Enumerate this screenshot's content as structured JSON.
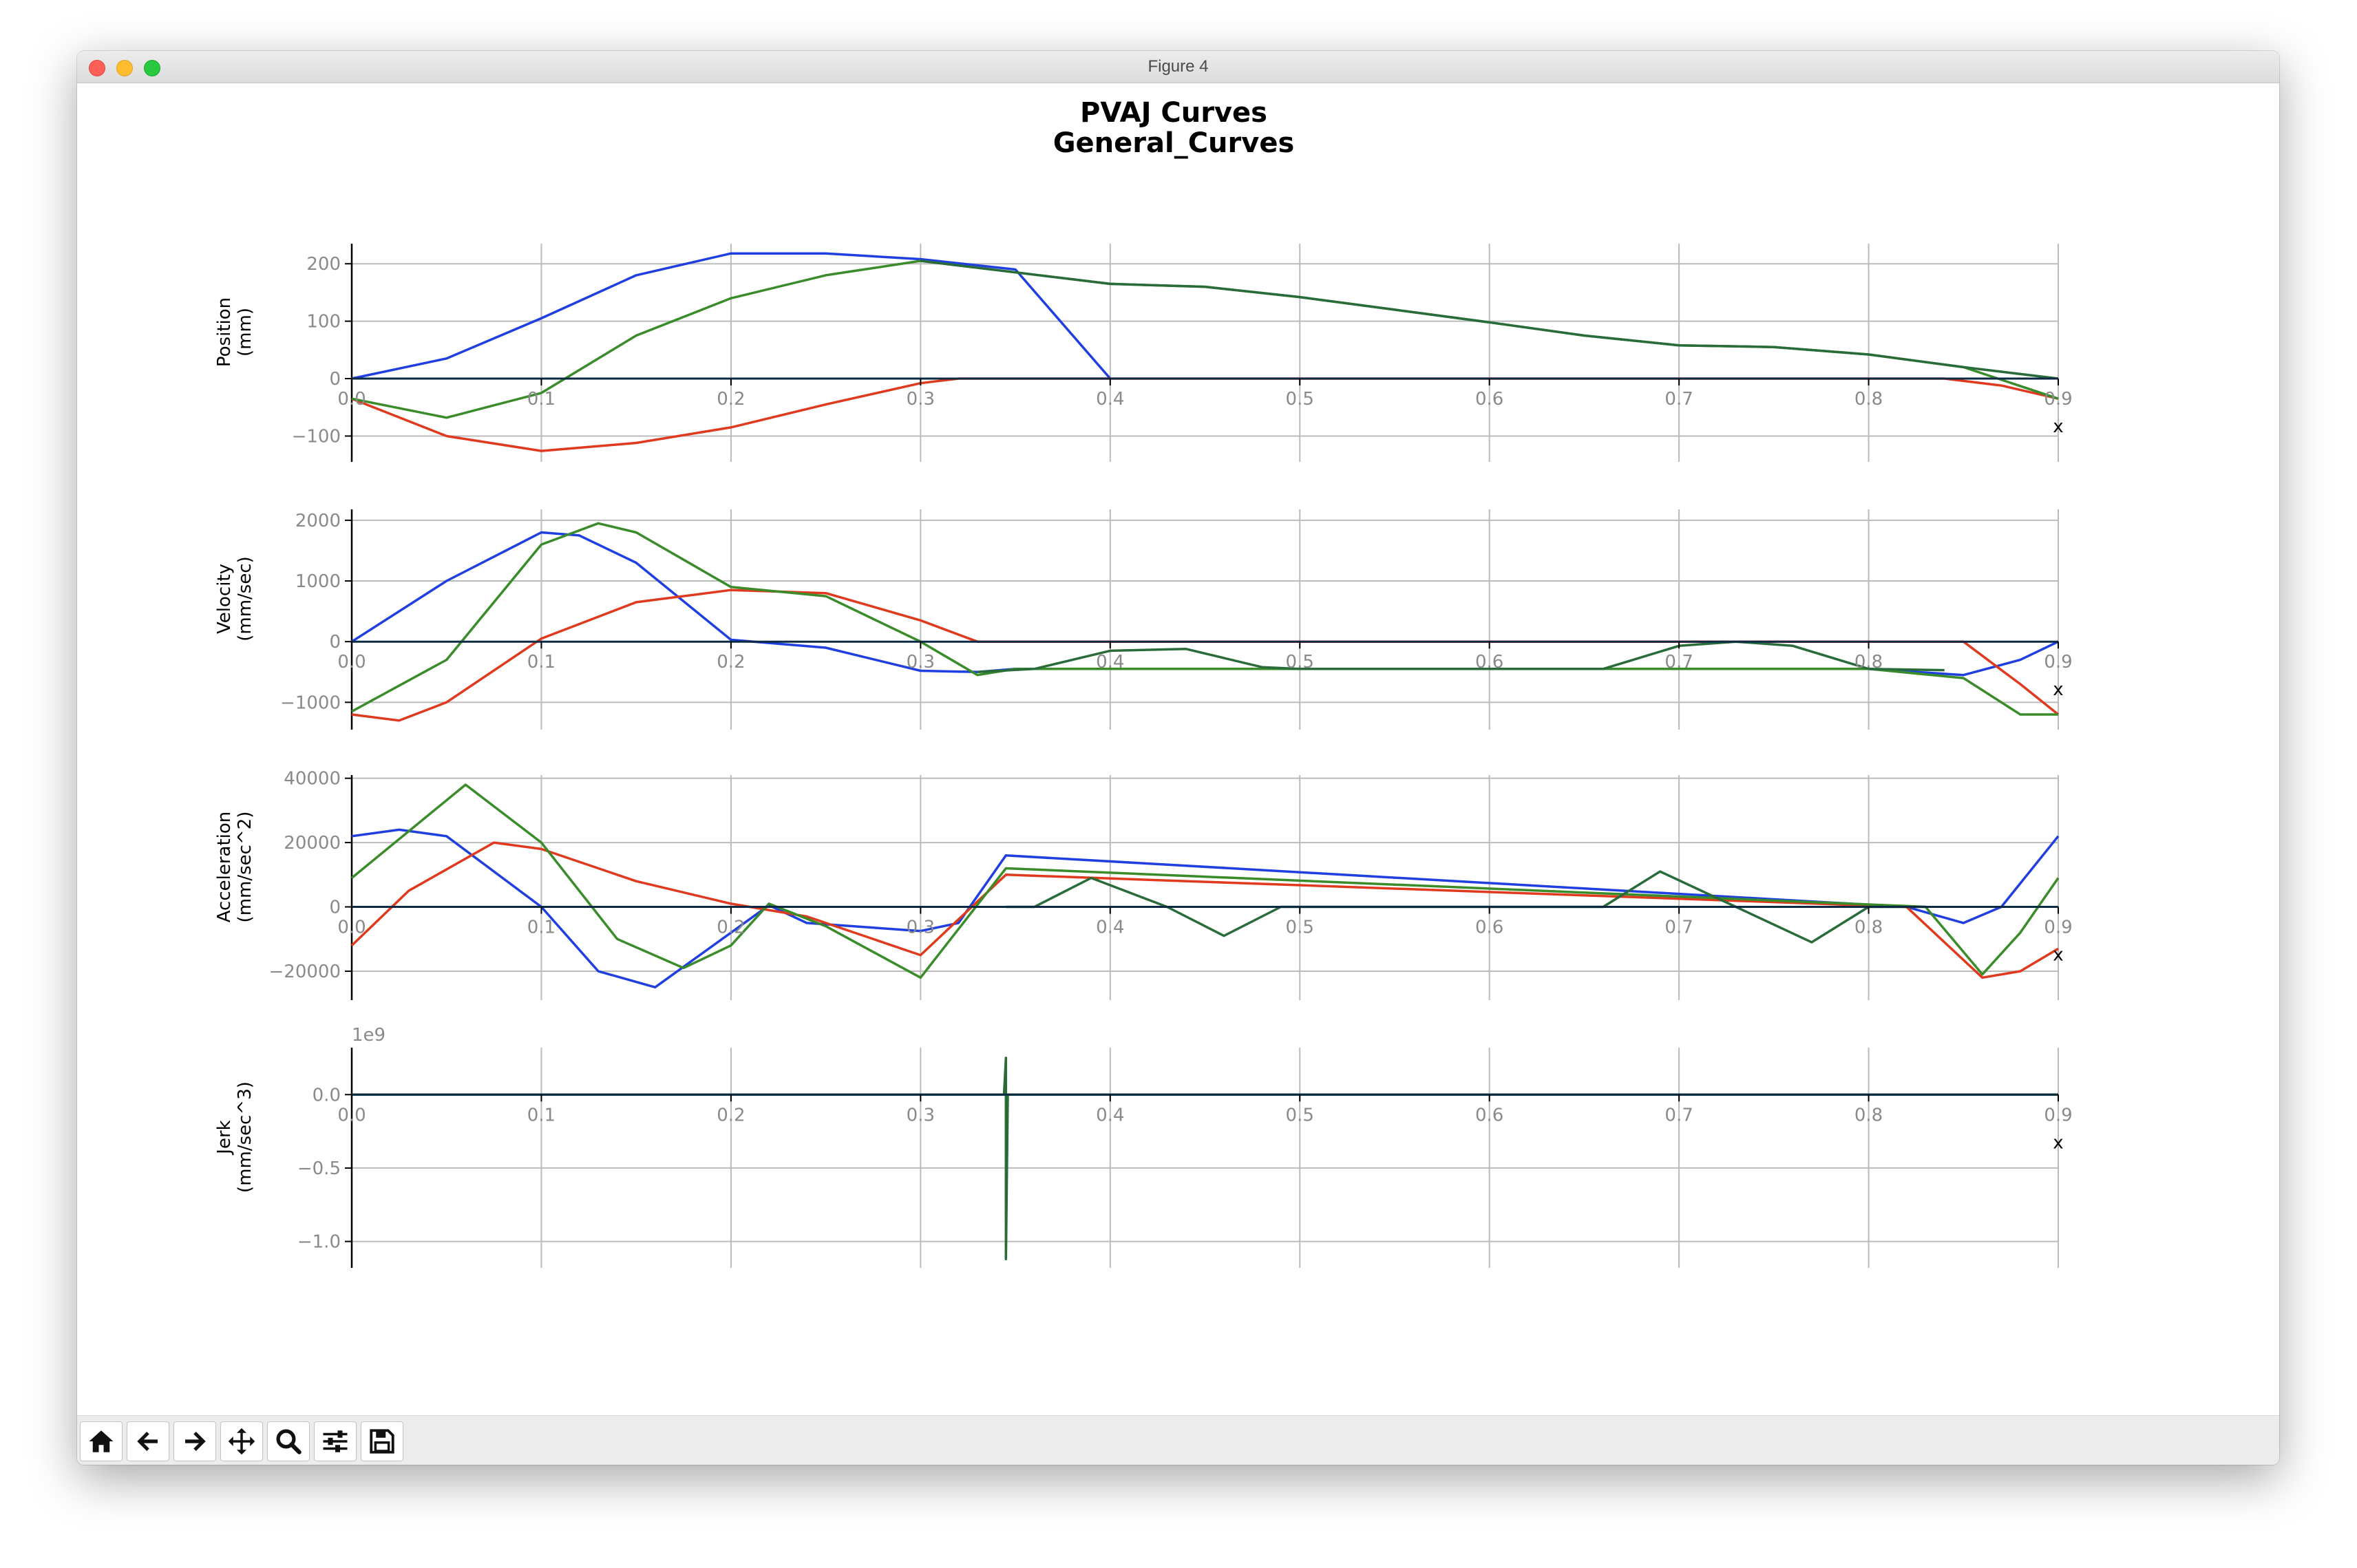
{
  "window": {
    "title": "Figure 4"
  },
  "toolbar": {
    "buttons": [
      {
        "name": "home-button",
        "icon": "home-icon"
      },
      {
        "name": "back-button",
        "icon": "arrow-left-icon"
      },
      {
        "name": "forward-button",
        "icon": "arrow-right-icon"
      },
      {
        "name": "pan-button",
        "icon": "move-icon"
      },
      {
        "name": "zoom-button",
        "icon": "magnifier-icon"
      },
      {
        "name": "configure-subplots-button",
        "icon": "sliders-icon"
      },
      {
        "name": "save-button",
        "icon": "floppy-disk-icon"
      }
    ]
  },
  "colors": {
    "series1": "#1f3fe0",
    "series2": "#e03a1e",
    "series3": "#3a8c2a",
    "series4": "#0d2a45",
    "grid": "#bbbbbb"
  },
  "figure": {
    "title_line1": "PVAJ Curves",
    "title_line2": "General_Curves"
  },
  "chart_data": [
    {
      "type": "line",
      "ylabel": [
        "Position",
        "(mm)"
      ],
      "xlabel": "x",
      "xlim": [
        0,
        0.9
      ],
      "ylim": [
        -145,
        235
      ],
      "xticks": [
        "0.0",
        "0.1",
        "0.2",
        "0.3",
        "0.4",
        "0.5",
        "0.6",
        "0.7",
        "0.8",
        "0.9"
      ],
      "yticks": [
        200,
        100,
        0,
        -100
      ],
      "ytick_labels": [
        "200",
        "100",
        "0",
        "−100"
      ],
      "grid": true,
      "series": [
        {
          "color": "#1f3fe0",
          "x": [
            0,
            0.05,
            0.1,
            0.15,
            0.2,
            0.25,
            0.3,
            0.35,
            0.4
          ],
          "y": [
            0,
            35,
            105,
            180,
            218,
            218,
            208,
            190,
            0
          ]
        },
        {
          "color": "#e03a1e",
          "x": [
            0,
            0.05,
            0.1,
            0.15,
            0.2,
            0.25,
            0.3,
            0.32,
            0.34,
            0.8,
            0.84,
            0.87,
            0.9
          ],
          "y": [
            -35,
            -100,
            -126,
            -112,
            -85,
            -45,
            -8,
            0,
            0,
            0,
            0,
            -12,
            -35
          ]
        },
        {
          "color": "#3a8c2a",
          "x": [
            0,
            0.05,
            0.1,
            0.15,
            0.2,
            0.25,
            0.3,
            0.35,
            0.4,
            0.45,
            0.5,
            0.55,
            0.6,
            0.65,
            0.7,
            0.75,
            0.8,
            0.85,
            0.9
          ],
          "y": [
            -35,
            -68,
            -25,
            75,
            140,
            180,
            205,
            185,
            165,
            160,
            142,
            120,
            98,
            75,
            58,
            55,
            42,
            20,
            -35
          ]
        },
        {
          "color": "#2a6b3a",
          "x": [
            0.3,
            0.35,
            0.4,
            0.45,
            0.5,
            0.55,
            0.6,
            0.65,
            0.7,
            0.75,
            0.8,
            0.85,
            0.9
          ],
          "y": [
            205,
            185,
            165,
            160,
            142,
            120,
            98,
            75,
            58,
            55,
            42,
            20,
            0
          ]
        },
        {
          "color": "#0d2a45",
          "x": [
            0,
            0.9
          ],
          "y": [
            0,
            0
          ]
        }
      ]
    },
    {
      "type": "line",
      "ylabel": [
        "Velocity",
        "(mm/sec)"
      ],
      "xlabel": "x",
      "xlim": [
        0,
        0.9
      ],
      "ylim": [
        -1450,
        2180
      ],
      "xticks": [
        "0.0",
        "0.1",
        "0.2",
        "0.3",
        "0.4",
        "0.5",
        "0.6",
        "0.7",
        "0.8",
        "0.9"
      ],
      "yticks": [
        2000,
        1000,
        0,
        -1000
      ],
      "ytick_labels": [
        "2000",
        "1000",
        "0",
        "−1000"
      ],
      "grid": true,
      "series": [
        {
          "color": "#1f3fe0",
          "x": [
            0,
            0.05,
            0.1,
            0.12,
            0.15,
            0.2,
            0.25,
            0.3,
            0.33,
            0.35,
            0.8,
            0.85,
            0.88,
            0.9
          ],
          "y": [
            0,
            1000,
            1800,
            1750,
            1300,
            30,
            -100,
            -480,
            -500,
            -450,
            -450,
            -550,
            -300,
            0
          ]
        },
        {
          "color": "#e03a1e",
          "x": [
            0,
            0.025,
            0.05,
            0.1,
            0.15,
            0.2,
            0.25,
            0.3,
            0.33,
            0.85,
            0.88,
            0.9
          ],
          "y": [
            -1200,
            -1300,
            -1000,
            50,
            650,
            850,
            800,
            350,
            0,
            0,
            -700,
            -1200
          ]
        },
        {
          "color": "#3a8c2a",
          "x": [
            0,
            0.05,
            0.1,
            0.13,
            0.15,
            0.2,
            0.25,
            0.3,
            0.33,
            0.35,
            0.8,
            0.85,
            0.88,
            0.9
          ],
          "y": [
            -1150,
            -300,
            1600,
            1950,
            1800,
            900,
            750,
            0,
            -550,
            -450,
            -450,
            -600,
            -1200,
            -1200
          ]
        },
        {
          "color": "#2a6b3a",
          "x": [
            0.33,
            0.36,
            0.4,
            0.44,
            0.48,
            0.5,
            0.66,
            0.7,
            0.73,
            0.76,
            0.8,
            0.84
          ],
          "y": [
            -500,
            -450,
            -150,
            -120,
            -420,
            -450,
            -450,
            -70,
            0,
            -70,
            -450,
            -470
          ]
        },
        {
          "color": "#0d2a45",
          "x": [
            0,
            0.9
          ],
          "y": [
            0,
            0
          ]
        }
      ]
    },
    {
      "type": "line",
      "ylabel": [
        "Acceleration",
        "(mm/sec^2)"
      ],
      "xlabel": "x",
      "xlim": [
        0,
        0.9
      ],
      "ylim": [
        -29000,
        41000
      ],
      "xticks": [
        "0.0",
        "0.1",
        "0.2",
        "0.3",
        "0.4",
        "0.5",
        "0.6",
        "0.7",
        "0.8",
        "0.9"
      ],
      "yticks": [
        40000,
        20000,
        0,
        -20000
      ],
      "ytick_labels": [
        "40000",
        "20000",
        "0",
        "−20000"
      ],
      "grid": true,
      "series": [
        {
          "color": "#1f3fe0",
          "x": [
            0,
            0.025,
            0.05,
            0.1,
            0.13,
            0.16,
            0.2,
            0.22,
            0.24,
            0.3,
            0.32,
            0.345,
            0.82,
            0.85,
            0.87,
            0.9
          ],
          "y": [
            22000,
            24000,
            22000,
            0,
            -20000,
            -25000,
            -8000,
            500,
            -5000,
            -7500,
            -5000,
            16000,
            0,
            -5000,
            0,
            22000
          ]
        },
        {
          "color": "#e03a1e",
          "x": [
            0,
            0.03,
            0.075,
            0.1,
            0.15,
            0.2,
            0.24,
            0.3,
            0.345,
            0.82,
            0.86,
            0.88,
            0.9
          ],
          "y": [
            -12000,
            5000,
            20000,
            18000,
            8000,
            1000,
            -3000,
            -15000,
            10000,
            0,
            -22000,
            -20000,
            -13000
          ]
        },
        {
          "color": "#3a8c2a",
          "x": [
            0,
            0.06,
            0.1,
            0.14,
            0.175,
            0.2,
            0.22,
            0.25,
            0.3,
            0.345,
            0.83,
            0.86,
            0.88,
            0.9
          ],
          "y": [
            9000,
            38000,
            20000,
            -10000,
            -19000,
            -12000,
            1000,
            -6000,
            -22000,
            12000,
            0,
            -21000,
            -8000,
            9000
          ]
        },
        {
          "color": "#2a6b3a",
          "x": [
            0.345,
            0.36,
            0.39,
            0.43,
            0.46,
            0.49,
            0.5,
            0.66,
            0.69,
            0.73,
            0.77,
            0.8,
            0.83
          ],
          "y": [
            0,
            0,
            9000,
            0,
            -9000,
            0,
            0,
            0,
            11000,
            0,
            -11000,
            0,
            0
          ]
        },
        {
          "color": "#0d2a45",
          "x": [
            0,
            0.9
          ],
          "y": [
            0,
            0
          ]
        }
      ]
    },
    {
      "type": "line",
      "ylabel": [
        "Jerk",
        "(mm/sec^3)"
      ],
      "xlabel": "x",
      "offset_label": "1e9",
      "xlim": [
        0,
        0.9
      ],
      "ylim": [
        -1.18,
        0.32
      ],
      "xticks": [
        "0.0",
        "0.1",
        "0.2",
        "0.3",
        "0.4",
        "0.5",
        "0.6",
        "0.7",
        "0.8",
        "0.9"
      ],
      "yticks": [
        0.0,
        -0.5,
        -1.0
      ],
      "ytick_labels": [
        "0.0",
        "−0.5",
        "−1.0"
      ],
      "grid": true,
      "series": [
        {
          "color": "#2a6b3a",
          "x": [
            0,
            0.344,
            0.345,
            0.345,
            0.346,
            0.9
          ],
          "y": [
            0,
            0,
            0.25,
            -1.12,
            0,
            0
          ]
        },
        {
          "color": "#0d2a45",
          "x": [
            0,
            0.9
          ],
          "y": [
            0,
            0
          ]
        }
      ]
    }
  ]
}
